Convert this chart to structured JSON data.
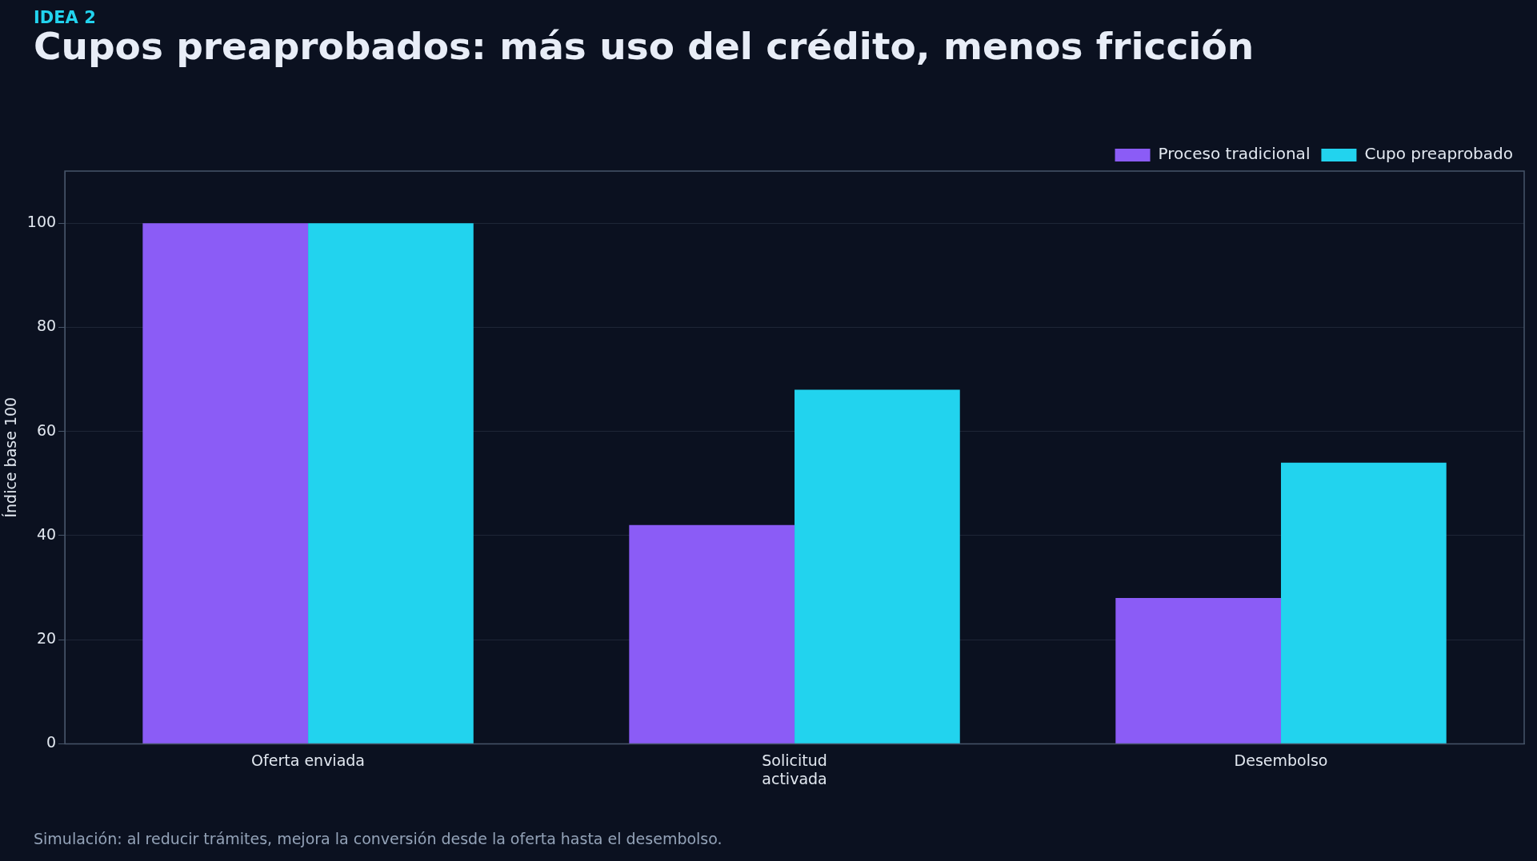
{
  "chart_data": {
    "type": "bar",
    "subtitle": "IDEA 2",
    "title": "Cupos preaprobados: más uso del crédito, menos fricción",
    "ylabel": "Índice base 100",
    "categories": [
      "Oferta enviada",
      "Solicitud\nactivada",
      "Desembolso"
    ],
    "series": [
      {
        "name": "Proceso tradicional",
        "color": "#8b5cf6",
        "values": [
          100,
          42,
          28
        ]
      },
      {
        "name": "Cupo preaprobado",
        "color": "#22d3ee",
        "values": [
          100,
          68,
          54
        ]
      }
    ],
    "ylim": [
      0,
      110
    ],
    "yticks": [
      0,
      20,
      40,
      60,
      80,
      100
    ],
    "grid": "y",
    "legend": "top right",
    "annotations": [
      "Simulación: al reducir trámites, mejora la conversión desde la oferta hasta el desembolso."
    ]
  }
}
